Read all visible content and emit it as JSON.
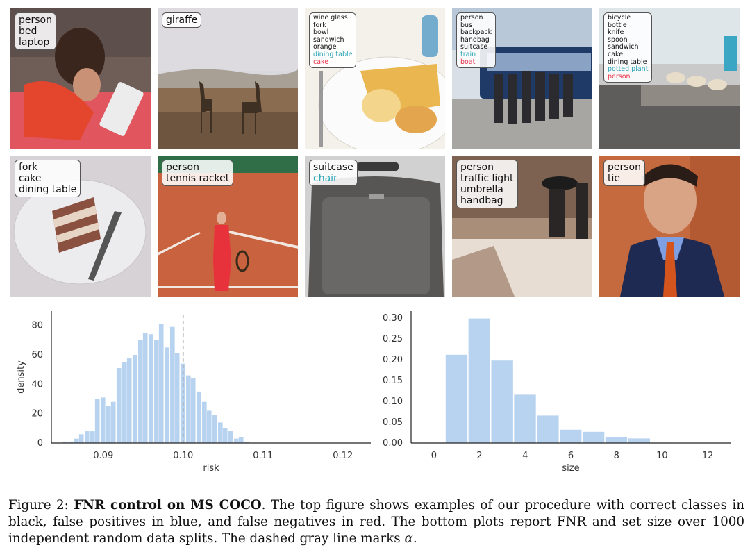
{
  "tiles": [
    {
      "labels": [
        {
          "text": "person",
          "type": "tp"
        },
        {
          "text": "bed",
          "type": "tp"
        },
        {
          "text": "laptop",
          "type": "tp"
        }
      ]
    },
    {
      "labels": [
        {
          "text": "giraffe",
          "type": "tp"
        }
      ]
    },
    {
      "labels": [
        {
          "text": "wine glass",
          "type": "tp"
        },
        {
          "text": "fork",
          "type": "tp"
        },
        {
          "text": "bowl",
          "type": "tp"
        },
        {
          "text": "sandwich",
          "type": "tp"
        },
        {
          "text": "orange",
          "type": "tp"
        },
        {
          "text": "dining table",
          "type": "fp"
        },
        {
          "text": "cake",
          "type": "fn"
        }
      ]
    },
    {
      "labels": [
        {
          "text": "person",
          "type": "tp"
        },
        {
          "text": "bus",
          "type": "tp"
        },
        {
          "text": "backpack",
          "type": "tp"
        },
        {
          "text": "handbag",
          "type": "tp"
        },
        {
          "text": "suitcase",
          "type": "tp"
        },
        {
          "text": "train",
          "type": "fp"
        },
        {
          "text": "boat",
          "type": "fn"
        }
      ]
    },
    {
      "labels": [
        {
          "text": "bicycle",
          "type": "tp"
        },
        {
          "text": "bottle",
          "type": "tp"
        },
        {
          "text": "knife",
          "type": "tp"
        },
        {
          "text": "spoon",
          "type": "tp"
        },
        {
          "text": "sandwich",
          "type": "tp"
        },
        {
          "text": "cake",
          "type": "tp"
        },
        {
          "text": "dining table",
          "type": "tp"
        },
        {
          "text": "potted plant",
          "type": "fp"
        },
        {
          "text": "person",
          "type": "fn"
        }
      ]
    },
    {
      "labels": [
        {
          "text": "fork",
          "type": "tp"
        },
        {
          "text": "cake",
          "type": "tp"
        },
        {
          "text": "dining table",
          "type": "tp"
        }
      ]
    },
    {
      "labels": [
        {
          "text": "person",
          "type": "tp"
        },
        {
          "text": "tennis racket",
          "type": "tp"
        }
      ]
    },
    {
      "labels": [
        {
          "text": "suitcase",
          "type": "tp"
        },
        {
          "text": "chair",
          "type": "fp"
        }
      ]
    },
    {
      "labels": [
        {
          "text": "person",
          "type": "tp"
        },
        {
          "text": "traffic light",
          "type": "tp"
        },
        {
          "text": "umbrella",
          "type": "tp"
        },
        {
          "text": "handbag",
          "type": "tp"
        }
      ]
    },
    {
      "labels": [
        {
          "text": "person",
          "type": "tp"
        },
        {
          "text": "tie",
          "type": "tp"
        }
      ]
    }
  ],
  "colors": {
    "correct": "#111111",
    "false_positive": "#2aa5b5",
    "false_negative": "#e8334a",
    "bar": "#b7d3ef",
    "dashed_line": "#aaaaaa"
  },
  "chart_data": [
    {
      "type": "bar",
      "xlabel": "risk",
      "ylabel": "density",
      "xlim": [
        0.0835,
        0.1235
      ],
      "ylim": [
        0,
        85
      ],
      "xticks": [
        "0.09",
        "0.10",
        "0.11",
        "0.12"
      ],
      "yticks": [
        "0",
        "20",
        "40",
        "60",
        "80"
      ],
      "bin_width": 0.000667,
      "bin_centers": [
        0.0853,
        0.086,
        0.0867,
        0.0873,
        0.088,
        0.0887,
        0.0893,
        0.09,
        0.0907,
        0.0913,
        0.092,
        0.0927,
        0.0933,
        0.094,
        0.0947,
        0.0953,
        0.096,
        0.0967,
        0.0973,
        0.098,
        0.0987,
        0.0993,
        0.1,
        0.1007,
        0.1013,
        0.102,
        0.1027,
        0.1033,
        0.104,
        0.1047,
        0.1053,
        0.106,
        0.1067,
        0.1073,
        0.108,
        0.1087,
        0.1093,
        0.11,
        0.1107,
        0.1113,
        0.112,
        0.1127,
        0.1133,
        0.114,
        0.1147,
        0.1153,
        0.116,
        0.1167,
        0.1173,
        0.118,
        0.1187,
        0.1193,
        0.12
      ],
      "values": [
        1,
        1,
        3,
        6,
        8,
        8,
        30,
        31,
        25,
        28,
        51,
        55,
        58,
        60,
        70,
        75,
        74,
        70,
        81,
        65,
        79,
        61,
        54,
        46,
        44,
        35,
        28,
        22,
        19,
        14,
        10,
        8,
        3,
        4,
        1,
        0,
        0,
        0,
        0,
        0,
        0,
        0,
        0,
        0,
        0,
        0,
        0,
        0,
        0,
        0,
        0,
        0,
        0
      ],
      "reference_line": {
        "x": 0.1,
        "style": "dashed",
        "color": "gray",
        "meaning": "alpha"
      }
    },
    {
      "type": "bar",
      "xlabel": "size",
      "ylabel": "",
      "xlim": [
        -1,
        13
      ],
      "ylim": [
        0,
        0.3
      ],
      "xticks": [
        "0",
        "2",
        "4",
        "6",
        "8",
        "10",
        "12"
      ],
      "yticks": [
        "0.00",
        "0.05",
        "0.10",
        "0.15",
        "0.20",
        "0.25",
        "0.30"
      ],
      "x": [
        0,
        1,
        2,
        3,
        4,
        5,
        6,
        7,
        8,
        9,
        10,
        11,
        12
      ],
      "values": [
        0.001,
        0.212,
        0.299,
        0.198,
        0.116,
        0.066,
        0.032,
        0.027,
        0.015,
        0.011,
        0.001,
        0,
        0
      ]
    }
  ],
  "caption": {
    "prefix": "Figure 2: ",
    "bold": "FNR control on MS COCO",
    "rest": ". The top figure shows examples of our procedure with correct classes in black, false positives in blue, and false negatives in red. The bottom plots report FNR and set size over 1000 independent random data splits. The dashed gray line marks ",
    "symbol": "α",
    "end": "."
  }
}
